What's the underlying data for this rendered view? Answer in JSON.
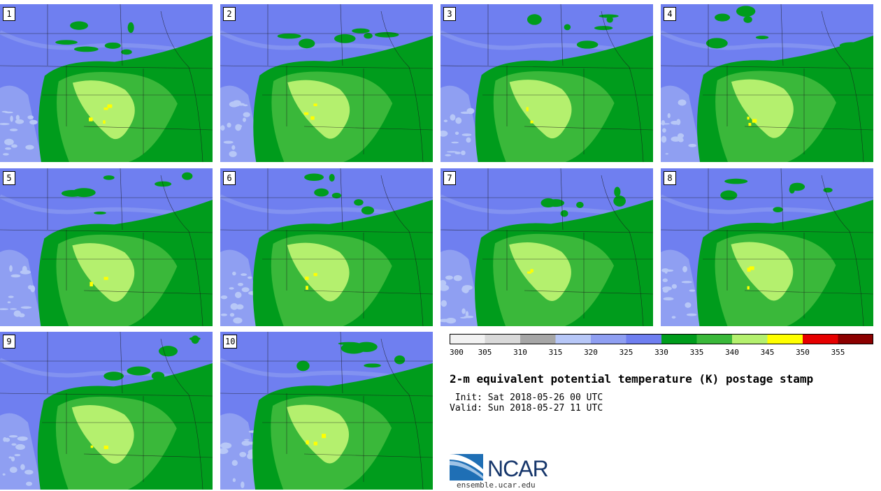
{
  "panels": [
    {
      "label": "1"
    },
    {
      "label": "2"
    },
    {
      "label": "3"
    },
    {
      "label": "4"
    },
    {
      "label": "5"
    },
    {
      "label": "6"
    },
    {
      "label": "7"
    },
    {
      "label": "8"
    },
    {
      "label": "9"
    },
    {
      "label": "10"
    }
  ],
  "colorbar": {
    "ticks": [
      "300",
      "305",
      "310",
      "315",
      "320",
      "325",
      "330",
      "335",
      "340",
      "345",
      "350",
      "355"
    ],
    "colors": [
      "#f2f2f2",
      "#d9d9d9",
      "#a6a6a6",
      "#b7c7f7",
      "#8f9ff2",
      "#6f7ff0",
      "#009c1c",
      "#3ab83a",
      "#b4f06e",
      "#ffff00",
      "#e60000",
      "#8b0000"
    ]
  },
  "colors": {
    "background_low": "#b7c7f7",
    "background_mid": "#8f9ff2",
    "background_main": "#6f7ff0",
    "green_dark": "#009c1c",
    "green_mid": "#3ab83a",
    "green_light": "#b4f06e",
    "yellow": "#ffff00"
  },
  "title": "2-m equivalent potential temperature (K) postage stamp",
  "init": " Init: Sat 2018-05-26 00 UTC",
  "valid": "Valid: Sun 2018-05-27 11 UTC",
  "logo": {
    "text": "NCAR",
    "site": "ensemble.ucar.edu"
  }
}
